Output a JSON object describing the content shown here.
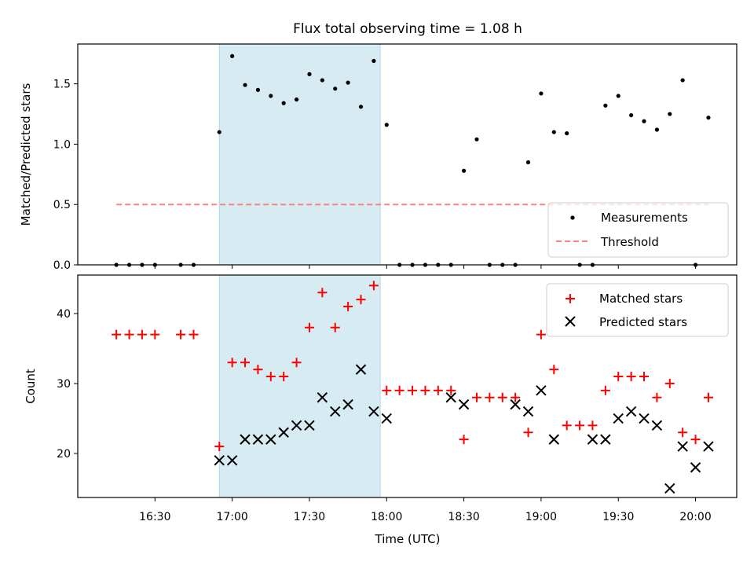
{
  "chart_data": {
    "type": "scatter",
    "title": "Flux total observing time = 1.08 h",
    "xlabel": "Time (UTC)",
    "x_tick_labels": [
      "16:30",
      "17:00",
      "17:30",
      "18:00",
      "18:30",
      "19:00",
      "19:30",
      "20:00"
    ],
    "x_tick_minutes": [
      990,
      1020,
      1050,
      1080,
      1110,
      1140,
      1170,
      1200
    ],
    "x_range_minutes": [
      960,
      1216
    ],
    "shaded_interval_minutes": [
      1015,
      1077.5
    ],
    "colors": {
      "shade": "#add8e6",
      "measurements": "#000000",
      "threshold": "#ff8080",
      "matched": "#ff0000",
      "predicted": "#000000"
    },
    "top": {
      "ylabel": "Matched/Predicted stars",
      "y_ticks": [
        "0.0",
        "0.5",
        "1.0",
        "1.5"
      ],
      "y_tick_values": [
        0,
        0.5,
        1,
        1.5
      ],
      "ylim": [
        0,
        1.83
      ],
      "threshold": {
        "value": 0.5,
        "x_range_minutes": [
          975,
          1205
        ]
      },
      "legend": {
        "position": "lower-right",
        "entries": [
          "Measurements",
          "Threshold"
        ]
      },
      "series": [
        {
          "name": "Measurements",
          "x_minutes": [
            975,
            980,
            985,
            990,
            1000,
            1005,
            1015,
            1020,
            1025,
            1030,
            1035,
            1040,
            1045,
            1050,
            1055,
            1060,
            1065,
            1070,
            1075,
            1080,
            1085,
            1090,
            1095,
            1100,
            1105,
            1110,
            1115,
            1120,
            1125,
            1130,
            1135,
            1140,
            1145,
            1150,
            1155,
            1160,
            1165,
            1170,
            1175,
            1180,
            1185,
            1190,
            1195,
            1200,
            1205
          ],
          "y": [
            0,
            0,
            0,
            0,
            0,
            0,
            1.1,
            1.73,
            1.49,
            1.45,
            1.4,
            1.34,
            1.37,
            1.58,
            1.53,
            1.46,
            1.51,
            1.31,
            1.69,
            1.16,
            0,
            0,
            0,
            0,
            0,
            0.78,
            1.04,
            0,
            0,
            0,
            0.85,
            1.42,
            1.1,
            1.09,
            0,
            0,
            1.32,
            1.4,
            1.24,
            1.19,
            1.12,
            1.25,
            1.53,
            0,
            1.22
          ]
        }
      ]
    },
    "bottom": {
      "ylabel": "Count",
      "y_ticks": [
        "20",
        "30",
        "40"
      ],
      "y_tick_values": [
        20,
        30,
        40
      ],
      "ylim": [
        13.7,
        45.5
      ],
      "legend": {
        "position": "top-right",
        "entries": [
          "Matched stars",
          "Predicted stars"
        ]
      },
      "series": [
        {
          "name": "Matched stars",
          "marker": "plus",
          "x_minutes": [
            975,
            980,
            985,
            990,
            1000,
            1005,
            1015,
            1020,
            1025,
            1030,
            1035,
            1040,
            1045,
            1050,
            1055,
            1060,
            1065,
            1070,
            1075,
            1080,
            1085,
            1090,
            1095,
            1100,
            1105,
            1110,
            1115,
            1120,
            1125,
            1130,
            1135,
            1140,
            1145,
            1150,
            1155,
            1160,
            1165,
            1170,
            1175,
            1180,
            1185,
            1190,
            1195,
            1200,
            1205
          ],
          "y": [
            37,
            37,
            37,
            37,
            37,
            37,
            21,
            33,
            33,
            32,
            31,
            31,
            33,
            38,
            43,
            38,
            41,
            42,
            44,
            29,
            29,
            29,
            29,
            29,
            29,
            22,
            28,
            28,
            28,
            28,
            23,
            37,
            32,
            24,
            24,
            24,
            29,
            31,
            31,
            31,
            28,
            30,
            23,
            22,
            28
          ]
        },
        {
          "name": "Predicted stars",
          "marker": "x",
          "x_minutes": [
            1015,
            1020,
            1025,
            1030,
            1035,
            1040,
            1045,
            1050,
            1055,
            1060,
            1065,
            1070,
            1075,
            1080,
            1105,
            1110,
            1130,
            1135,
            1140,
            1145,
            1160,
            1165,
            1170,
            1175,
            1180,
            1185,
            1190,
            1195,
            1200,
            1205
          ],
          "y": [
            19,
            19,
            22,
            22,
            22,
            23,
            24,
            24,
            28,
            26,
            27,
            32,
            26,
            25,
            28,
            27,
            27,
            26,
            29,
            22,
            22,
            22,
            25,
            26,
            25,
            24,
            15,
            21,
            18,
            21
          ]
        }
      ]
    }
  }
}
